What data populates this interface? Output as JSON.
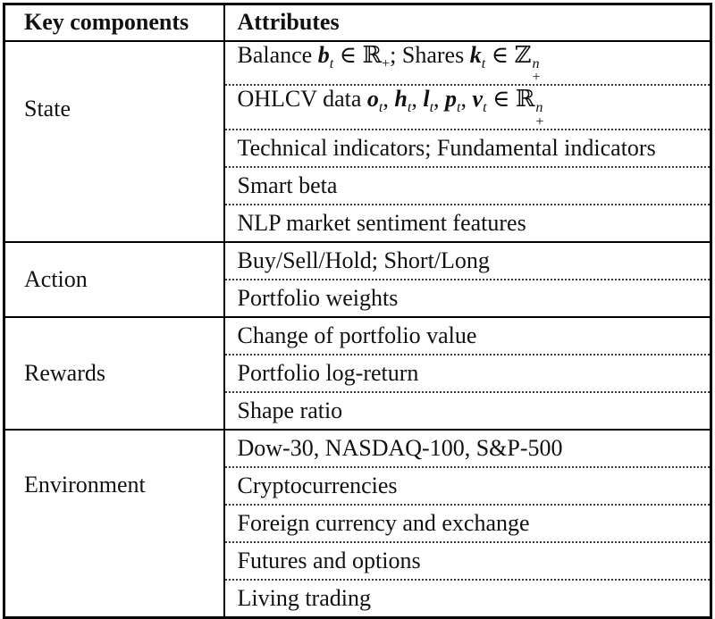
{
  "table": {
    "headers": [
      "Key components",
      "Attributes"
    ],
    "groups": [
      {
        "label": "State",
        "attributes": [
          {
            "segments": [
              {
                "t": "text",
                "v": "Balance "
              },
              {
                "t": "bi",
                "v": "b"
              },
              {
                "t": "subi",
                "v": "t"
              },
              {
                "t": "text",
                "v": " ∈ "
              },
              {
                "t": "bb",
                "v": "ℝ"
              },
              {
                "t": "sub",
                "v": "+"
              },
              {
                "t": "text",
                "v": "; Shares "
              },
              {
                "t": "bi",
                "v": "k"
              },
              {
                "t": "subi",
                "v": "t"
              },
              {
                "t": "text",
                "v": " ∈ "
              },
              {
                "t": "bb",
                "v": "ℤ"
              },
              {
                "t": "supsub",
                "sup": "n",
                "sub": "+"
              }
            ]
          },
          {
            "segments": [
              {
                "t": "text",
                "v": "OHLCV data "
              },
              {
                "t": "bi",
                "v": "o"
              },
              {
                "t": "subi",
                "v": "t"
              },
              {
                "t": "text",
                "v": ", "
              },
              {
                "t": "bi",
                "v": "h"
              },
              {
                "t": "subi",
                "v": "t"
              },
              {
                "t": "text",
                "v": ", "
              },
              {
                "t": "bi",
                "v": "l"
              },
              {
                "t": "subi",
                "v": "t"
              },
              {
                "t": "text",
                "v": ", "
              },
              {
                "t": "bi",
                "v": "p"
              },
              {
                "t": "subi",
                "v": "t"
              },
              {
                "t": "text",
                "v": ", "
              },
              {
                "t": "bi",
                "v": "v"
              },
              {
                "t": "subi",
                "v": "t"
              },
              {
                "t": "text",
                "v": " ∈ "
              },
              {
                "t": "bb",
                "v": "ℝ"
              },
              {
                "t": "supsub",
                "sup": "n",
                "sub": "+"
              }
            ]
          },
          {
            "segments": [
              {
                "t": "text",
                "v": "Technical indicators; Fundamental indicators"
              }
            ]
          },
          {
            "segments": [
              {
                "t": "text",
                "v": "Smart beta"
              }
            ]
          },
          {
            "segments": [
              {
                "t": "text",
                "v": "NLP market sentiment features"
              }
            ]
          }
        ]
      },
      {
        "label": "Action",
        "attributes": [
          {
            "segments": [
              {
                "t": "text",
                "v": "Buy/Sell/Hold; Short/Long"
              }
            ]
          },
          {
            "segments": [
              {
                "t": "text",
                "v": "Portfolio weights"
              }
            ]
          }
        ]
      },
      {
        "label": "Rewards",
        "attributes": [
          {
            "segments": [
              {
                "t": "text",
                "v": "Change of portfolio value"
              }
            ]
          },
          {
            "segments": [
              {
                "t": "text",
                "v": "Portfolio log-return"
              }
            ]
          },
          {
            "segments": [
              {
                "t": "text",
                "v": "Shape ratio"
              }
            ]
          }
        ]
      },
      {
        "label": "Environment",
        "attributes": [
          {
            "segments": [
              {
                "t": "text",
                "v": "Dow-30, NASDAQ-100, S&P-500"
              }
            ]
          },
          {
            "segments": [
              {
                "t": "text",
                "v": "Cryptocurrencies"
              }
            ]
          },
          {
            "segments": [
              {
                "t": "text",
                "v": "Foreign currency and exchange"
              }
            ]
          },
          {
            "segments": [
              {
                "t": "text",
                "v": "Futures and options"
              }
            ]
          },
          {
            "segments": [
              {
                "t": "text",
                "v": "Living trading"
              }
            ]
          }
        ]
      }
    ]
  }
}
